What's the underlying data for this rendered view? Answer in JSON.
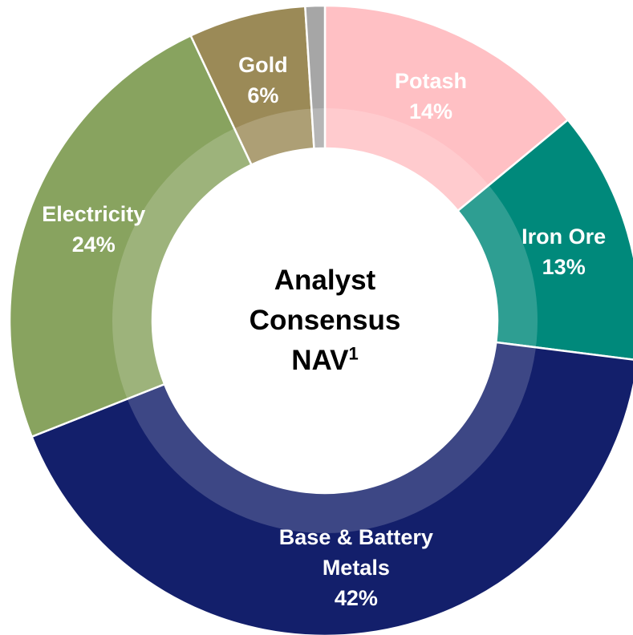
{
  "chart_data": {
    "type": "donut",
    "title": "Analyst Consensus NAV",
    "title_footnote": "1",
    "categories": [
      "Potash",
      "Iron Ore",
      "Base & Battery Metals",
      "Electricity",
      "Gold",
      null
    ],
    "values": [
      14,
      13,
      42,
      24,
      6,
      1
    ],
    "value_labels": [
      "14%",
      "13%",
      "42%",
      "24%",
      "6%",
      null
    ],
    "colors": [
      "#ffc0c4",
      "#00897b",
      "#131f6b",
      "#88a35f",
      "#9b8a57",
      "#a6a6a6"
    ]
  }
}
